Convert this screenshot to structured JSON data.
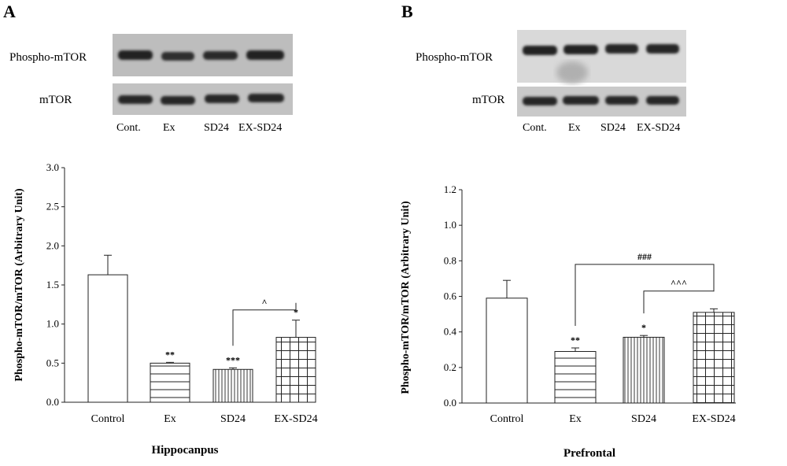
{
  "panels": [
    {
      "letter": "A",
      "blot": {
        "rows": [
          "Phospho-mTOR",
          "mTOR"
        ],
        "lanes": [
          "Cont.",
          "Ex",
          "SD24",
          "EX-SD24"
        ]
      },
      "region_label": "Hippocanpus"
    },
    {
      "letter": "B",
      "blot": {
        "rows": [
          "Phospho-mTOR",
          "mTOR"
        ],
        "lanes": [
          "Cont.",
          "Ex",
          "SD24",
          "EX-SD24"
        ]
      },
      "region_label": "Prefrontal"
    }
  ],
  "chart_data": [
    {
      "type": "bar",
      "ylabel": "Phospho-mTOR/mTOR (Arbitrary Unit)",
      "xlabel": "Hippocanpus",
      "categories": [
        "Control",
        "Ex",
        "SD24",
        "EX-SD24"
      ],
      "values": [
        1.63,
        0.5,
        0.42,
        0.83
      ],
      "errors": [
        0.25,
        0.01,
        0.02,
        0.22
      ],
      "ylim": [
        0,
        3.0
      ],
      "yticks": [
        "0.0",
        "0.5",
        "1.0",
        "1.5",
        "2.0",
        "2.5",
        "3.0"
      ],
      "bar_patterns": [
        "none",
        "horizontal",
        "vertical",
        "grid"
      ],
      "significance": [
        "",
        "**",
        "***",
        "*"
      ],
      "brackets": [
        {
          "from": "SD24",
          "to": "EX-SD24",
          "label": "^",
          "y": 1.18
        }
      ]
    },
    {
      "type": "bar",
      "ylabel": "Phospho-mTOR/mTOR (Arbitrary Unit)",
      "xlabel": "Prefrontal",
      "categories": [
        "Control",
        "Ex",
        "SD24",
        "EX-SD24"
      ],
      "values": [
        0.59,
        0.29,
        0.37,
        0.51
      ],
      "errors": [
        0.1,
        0.02,
        0.01,
        0.02
      ],
      "ylim": [
        0,
        1.2
      ],
      "yticks": [
        "0.0",
        "0.2",
        "0.4",
        "0.6",
        "0.8",
        "1.0",
        "1.2"
      ],
      "bar_patterns": [
        "none",
        "horizontal",
        "vertical",
        "grid"
      ],
      "significance": [
        "",
        "**",
        "*",
        ""
      ],
      "brackets": [
        {
          "from": "Ex",
          "to": "EX-SD24",
          "label": "###",
          "y": 0.78
        },
        {
          "from": "SD24",
          "to": "EX-SD24",
          "label": "^^^",
          "y": 0.63
        }
      ]
    }
  ]
}
